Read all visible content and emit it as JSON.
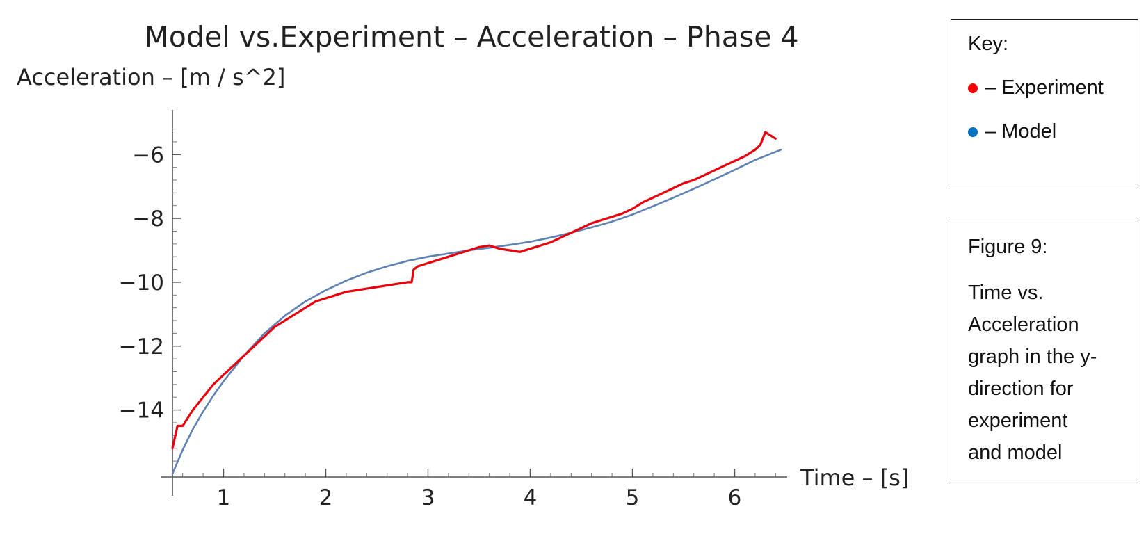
{
  "chart_data": {
    "type": "line",
    "title": "Model vs.Experiment – Acceleration – Phase 4",
    "ylabel": "Acceleration  –  [m / s^2]",
    "xlabel": "Time  –  [s]",
    "xlim": [
      0.5,
      6.5
    ],
    "ylim": [
      -16.1,
      -4.6
    ],
    "x_ticks": [
      1,
      2,
      3,
      4,
      5,
      6
    ],
    "x_tick_labels": [
      "1",
      "2",
      "3",
      "4",
      "5",
      "6"
    ],
    "y_ticks": [
      -14,
      -12,
      -10,
      -8,
      -6
    ],
    "y_tick_labels": [
      "−14",
      "−12",
      "−10",
      "−8",
      "−6"
    ],
    "grid": false,
    "series": [
      {
        "name": "Experiment",
        "color": "#e8000b",
        "x": [
          0.5,
          0.55,
          0.6,
          0.7,
          0.8,
          0.9,
          1.0,
          1.1,
          1.2,
          1.3,
          1.4,
          1.5,
          1.6,
          1.7,
          1.8,
          1.9,
          2.0,
          2.1,
          2.2,
          2.3,
          2.4,
          2.5,
          2.6,
          2.7,
          2.8,
          2.84,
          2.86,
          2.9,
          3.0,
          3.1,
          3.2,
          3.3,
          3.4,
          3.5,
          3.6,
          3.7,
          3.8,
          3.9,
          4.0,
          4.1,
          4.2,
          4.3,
          4.4,
          4.5,
          4.6,
          4.7,
          4.8,
          4.9,
          5.0,
          5.1,
          5.2,
          5.3,
          5.4,
          5.5,
          5.6,
          5.7,
          5.8,
          5.9,
          6.0,
          6.1,
          6.2,
          6.25,
          6.3,
          6.35,
          6.4
        ],
        "y": [
          -15.2,
          -14.5,
          -14.5,
          -14.0,
          -13.6,
          -13.2,
          -12.9,
          -12.6,
          -12.3,
          -12.0,
          -11.7,
          -11.4,
          -11.2,
          -11.0,
          -10.8,
          -10.6,
          -10.5,
          -10.4,
          -10.3,
          -10.25,
          -10.2,
          -10.15,
          -10.1,
          -10.05,
          -10.0,
          -10.0,
          -9.6,
          -9.5,
          -9.4,
          -9.3,
          -9.2,
          -9.1,
          -9.0,
          -8.9,
          -8.85,
          -8.95,
          -9.0,
          -9.05,
          -8.95,
          -8.85,
          -8.75,
          -8.6,
          -8.45,
          -8.3,
          -8.15,
          -8.05,
          -7.95,
          -7.85,
          -7.7,
          -7.5,
          -7.35,
          -7.2,
          -7.05,
          -6.9,
          -6.8,
          -6.65,
          -6.5,
          -6.35,
          -6.2,
          -6.05,
          -5.85,
          -5.7,
          -5.3,
          -5.4,
          -5.5
        ]
      },
      {
        "name": "Model",
        "color": "#5e81b5",
        "x": [
          0.5,
          0.6,
          0.7,
          0.8,
          0.9,
          1.0,
          1.2,
          1.4,
          1.6,
          1.8,
          2.0,
          2.2,
          2.4,
          2.6,
          2.8,
          3.0,
          3.2,
          3.4,
          3.6,
          3.8,
          4.0,
          4.2,
          4.4,
          4.6,
          4.8,
          5.0,
          5.2,
          5.4,
          5.6,
          5.8,
          6.0,
          6.2,
          6.45
        ],
        "y": [
          -16.0,
          -15.25,
          -14.6,
          -14.05,
          -13.55,
          -13.1,
          -12.3,
          -11.6,
          -11.05,
          -10.6,
          -10.25,
          -9.95,
          -9.7,
          -9.5,
          -9.33,
          -9.2,
          -9.1,
          -9.0,
          -8.92,
          -8.83,
          -8.73,
          -8.6,
          -8.45,
          -8.28,
          -8.1,
          -7.88,
          -7.62,
          -7.35,
          -7.07,
          -6.78,
          -6.48,
          -6.17,
          -5.85
        ]
      }
    ]
  },
  "key": {
    "title": "Key:",
    "items": [
      {
        "label": "– Experiment",
        "color": "#ff0000"
      },
      {
        "label": "– Model",
        "color": "#0070c0"
      }
    ]
  },
  "caption": {
    "title": "Figure 9:",
    "lines": [
      "Time vs.",
      "Acceleration",
      "graph in the y-",
      "direction for",
      "experiment",
      "and model"
    ]
  }
}
